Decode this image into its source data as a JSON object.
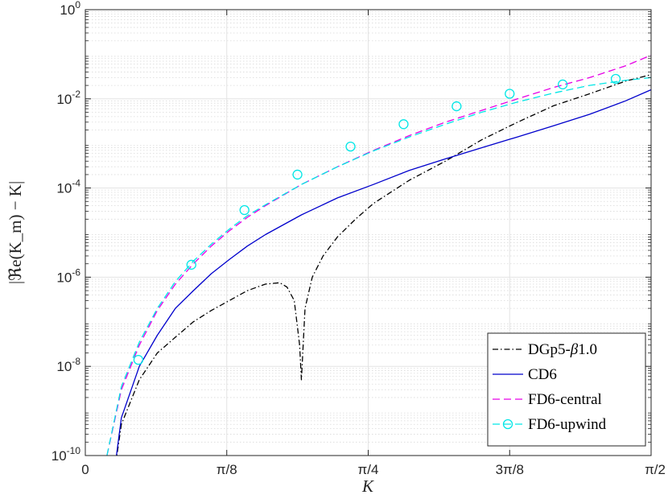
{
  "chart_data": {
    "type": "line",
    "yscale": "log",
    "xlabel": "K",
    "ylabel": "|ℜe(K_m) − K|",
    "xlim": [
      0,
      1.5708
    ],
    "ylim": [
      1e-10,
      1
    ],
    "grid": true,
    "minor_grid": true,
    "legend_position": "bottom-right",
    "x_ticks": [
      {
        "value": 0,
        "label": "0"
      },
      {
        "value": 0.3927,
        "label": "π/8"
      },
      {
        "value": 0.7854,
        "label": "π/4"
      },
      {
        "value": 1.1781,
        "label": "3π/8"
      },
      {
        "value": 1.5708,
        "label": "π/2"
      }
    ],
    "y_ticks": [
      {
        "value": 1,
        "base": "10",
        "exp": "0"
      },
      {
        "value": 0.01,
        "base": "10",
        "exp": "-2"
      },
      {
        "value": 0.0001,
        "base": "10",
        "exp": "-4"
      },
      {
        "value": 1e-06,
        "base": "10",
        "exp": "-6"
      },
      {
        "value": 1e-08,
        "base": "10",
        "exp": "-8"
      },
      {
        "value": 1e-10,
        "base": "10",
        "exp": "-10"
      }
    ],
    "series": [
      {
        "name": "DGp5-β1.0",
        "legend_main": "DGp5-",
        "legend_italic": "β",
        "legend_tail": "1.0",
        "color": "#000000",
        "style": "dashdot",
        "marker": "none",
        "x": [
          0.075,
          0.1,
          0.15,
          0.2,
          0.25,
          0.3,
          0.35,
          0.4,
          0.45,
          0.5,
          0.54,
          0.56,
          0.58,
          0.595,
          0.6,
          0.61,
          0.63,
          0.66,
          0.7,
          0.75,
          0.8,
          0.9,
          1.0,
          1.1,
          1.2,
          1.3,
          1.4,
          1.5,
          1.5708
        ],
        "y": [
          2e-11,
          5e-10,
          5e-09,
          2e-08,
          4.5e-08,
          1e-07,
          1.8e-07,
          3e-07,
          5e-07,
          7e-07,
          7.5e-07,
          6e-07,
          3e-07,
          3e-08,
          5e-09,
          2e-07,
          1e-06,
          3e-06,
          8e-06,
          2e-05,
          4.5e-05,
          0.00015,
          0.0004,
          0.0012,
          0.003,
          0.007,
          0.013,
          0.025,
          0.035
        ]
      },
      {
        "name": "CD6",
        "color": "#0000CC",
        "style": "solid",
        "marker": "none",
        "x": [
          0.075,
          0.1,
          0.15,
          0.2,
          0.25,
          0.3,
          0.35,
          0.4,
          0.45,
          0.5,
          0.6,
          0.7,
          0.8,
          0.9,
          1.0,
          1.1,
          1.2,
          1.3,
          1.4,
          1.5,
          1.5708
        ],
        "y": [
          2e-11,
          7e-10,
          1e-08,
          5e-08,
          2e-07,
          5e-07,
          1.2e-06,
          2.5e-06,
          5e-06,
          9e-06,
          2.5e-05,
          6e-05,
          0.00012,
          0.00025,
          0.00045,
          0.0008,
          0.0014,
          0.0025,
          0.0045,
          0.009,
          0.016
        ]
      },
      {
        "name": "FD6-central",
        "color": "#E600E6",
        "style": "dashed",
        "marker": "none",
        "x": [
          0.06,
          0.1,
          0.15,
          0.2,
          0.25,
          0.3,
          0.35,
          0.4,
          0.45,
          0.5,
          0.6,
          0.7,
          0.8,
          0.9,
          1.0,
          1.1,
          1.2,
          1.3,
          1.4,
          1.5,
          1.5708
        ],
        "y": [
          1e-10,
          3e-09,
          3e-08,
          1.8e-07,
          7e-07,
          2e-06,
          5e-06,
          1.1e-05,
          2.2e-05,
          4e-05,
          0.00012,
          0.0003,
          0.0007,
          0.0015,
          0.003,
          0.0055,
          0.01,
          0.018,
          0.03,
          0.055,
          0.095
        ]
      },
      {
        "name": "FD6-upwind",
        "color": "#00E6E6",
        "style": "dashed",
        "marker": "circle",
        "x": [
          0.06,
          0.1,
          0.15,
          0.2,
          0.25,
          0.3,
          0.35,
          0.4,
          0.45,
          0.5,
          0.6,
          0.7,
          0.8,
          0.9,
          1.0,
          1.1,
          1.2,
          1.3,
          1.4,
          1.5,
          1.5708
        ],
        "y": [
          1e-10,
          3.5e-09,
          3.5e-08,
          2e-07,
          8e-07,
          2.3e-06,
          5.5e-06,
          1.2e-05,
          2.4e-05,
          4.2e-05,
          0.00012,
          0.0003,
          0.00068,
          0.0014,
          0.0027,
          0.005,
          0.0085,
          0.0135,
          0.02,
          0.026,
          0.03
        ],
        "marker_x": [
          0.1473,
          0.2945,
          0.4418,
          0.589,
          0.7363,
          0.8836,
          1.0308,
          1.1781,
          1.3254,
          1.4726
        ],
        "marker_y": [
          1.4e-08,
          1.9e-06,
          3.2e-05,
          0.0002,
          0.00085,
          0.0027,
          0.0068,
          0.013,
          0.021,
          0.028
        ]
      }
    ]
  }
}
